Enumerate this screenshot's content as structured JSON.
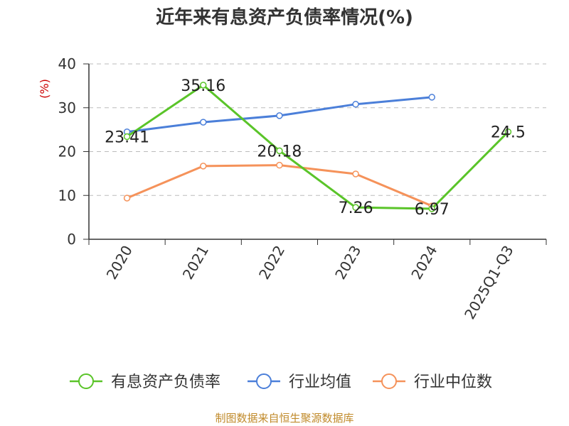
{
  "title": "近年来有息资产负债率情况(%)",
  "source": "制图数据来自恒生聚源数据库",
  "chart_data": {
    "type": "line",
    "title": "近年来有息资产负债率情况(%)",
    "ylabel": "(%)",
    "xlabel": "",
    "ylim": [
      0,
      40
    ],
    "yticks": [
      0,
      10,
      20,
      30,
      40
    ],
    "grid": true,
    "legend_position": "bottom",
    "categories": [
      "2020",
      "2021",
      "2022",
      "2023",
      "2024",
      "2025Q1-Q3"
    ],
    "series": [
      {
        "name": "有息资产负债率",
        "color": "#5ac429",
        "values": [
          23.41,
          35.16,
          20.18,
          7.26,
          6.97,
          24.5
        ],
        "labels": [
          "23.41",
          "35.16",
          "20.18",
          "7.26",
          "6.97",
          "24.5"
        ]
      },
      {
        "name": "行业均值",
        "color": "#4b7fd9",
        "values": [
          24.5,
          26.7,
          28.2,
          30.8,
          32.4,
          null
        ]
      },
      {
        "name": "行业中位数",
        "color": "#f5925a",
        "values": [
          9.4,
          16.7,
          16.9,
          14.9,
          7.6,
          null
        ]
      }
    ]
  }
}
